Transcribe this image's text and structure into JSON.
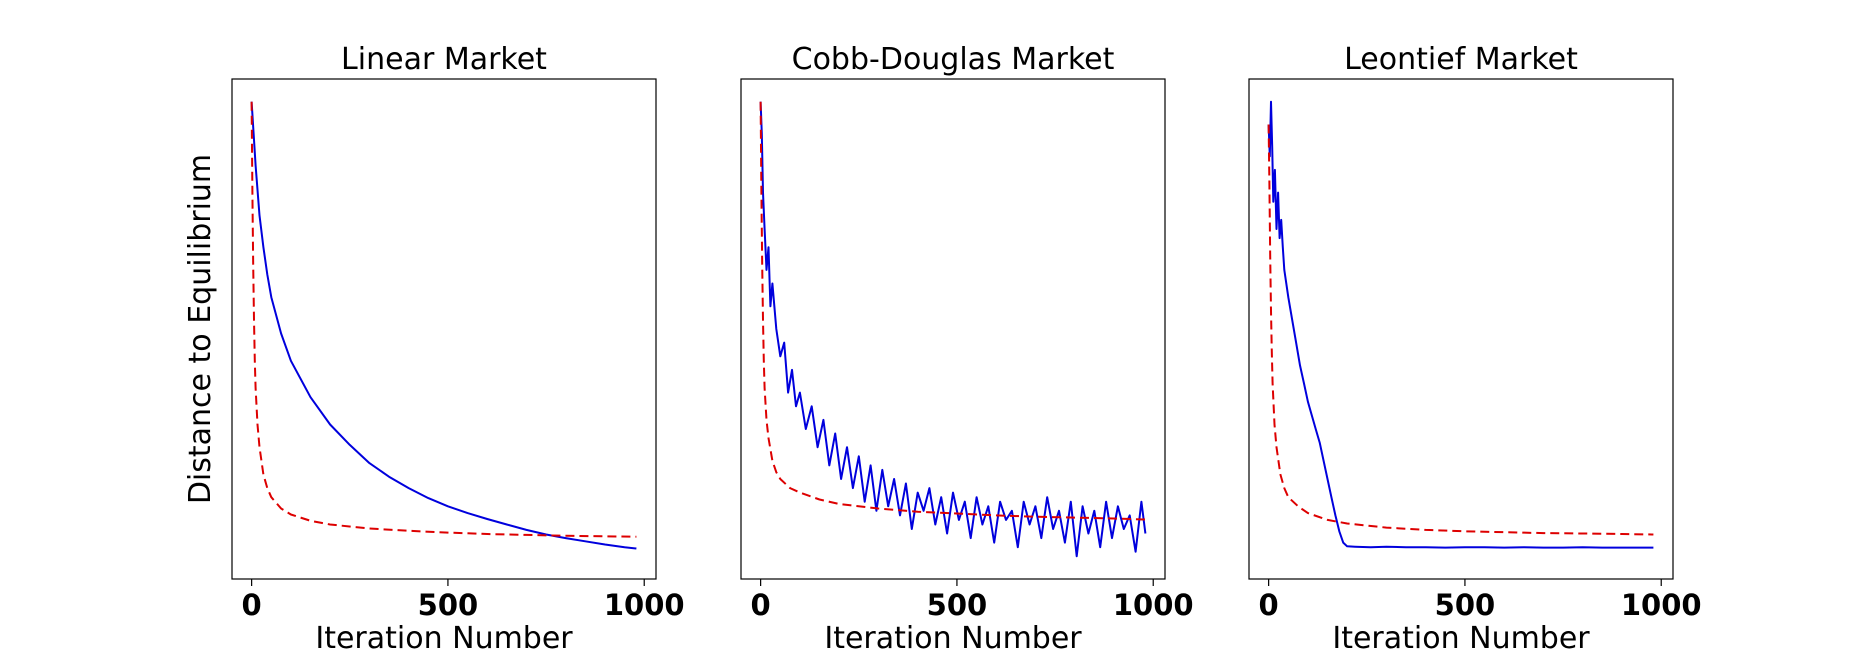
{
  "chart_data": [
    {
      "type": "line",
      "title": "Linear Market",
      "xlabel": "Iteration Number",
      "ylabel": "Distance to Equilibrium",
      "xlim": [
        -50,
        1030
      ],
      "ylim": [
        -0.05,
        1.05
      ],
      "x_ticks": [
        0,
        500,
        1000
      ],
      "y_ticks_labeled": false,
      "grid": false,
      "legend": "none",
      "series": [
        {
          "color": "#0000dd",
          "style": "solid",
          "x": [
            0,
            5,
            10,
            20,
            30,
            40,
            50,
            75,
            100,
            150,
            200,
            250,
            300,
            350,
            400,
            450,
            500,
            550,
            600,
            650,
            700,
            750,
            800,
            850,
            900,
            950,
            980
          ],
          "y": [
            1.0,
            0.93,
            0.86,
            0.75,
            0.68,
            0.62,
            0.57,
            0.49,
            0.43,
            0.35,
            0.29,
            0.245,
            0.205,
            0.175,
            0.15,
            0.128,
            0.11,
            0.095,
            0.082,
            0.07,
            0.058,
            0.048,
            0.04,
            0.033,
            0.026,
            0.02,
            0.017
          ]
        },
        {
          "color": "#dd0000",
          "style": "dashed",
          "x": [
            0,
            2,
            4,
            6,
            8,
            10,
            15,
            20,
            30,
            40,
            50,
            75,
            100,
            150,
            200,
            300,
            400,
            500,
            600,
            700,
            800,
            900,
            980
          ],
          "y": [
            1.0,
            0.8,
            0.64,
            0.52,
            0.43,
            0.37,
            0.29,
            0.24,
            0.18,
            0.15,
            0.13,
            0.105,
            0.092,
            0.078,
            0.07,
            0.061,
            0.056,
            0.052,
            0.049,
            0.047,
            0.045,
            0.044,
            0.043
          ]
        }
      ]
    },
    {
      "type": "line",
      "title": "Cobb-Douglas Market",
      "xlabel": "Iteration Number",
      "ylabel": "",
      "xlim": [
        -50,
        1030
      ],
      "ylim": [
        -0.05,
        1.05
      ],
      "x_ticks": [
        0,
        500,
        1000
      ],
      "y_ticks_labeled": false,
      "grid": false,
      "legend": "none",
      "series": [
        {
          "color": "#0000dd",
          "style": "solid",
          "x": [
            0,
            3,
            6,
            10,
            15,
            20,
            25,
            30,
            40,
            50,
            60,
            70,
            80,
            90,
            100,
            115,
            130,
            145,
            160,
            175,
            190,
            205,
            220,
            235,
            250,
            265,
            280,
            295,
            310,
            325,
            340,
            355,
            370,
            385,
            400,
            415,
            430,
            445,
            460,
            475,
            490,
            505,
            520,
            535,
            550,
            565,
            580,
            595,
            610,
            625,
            640,
            655,
            670,
            685,
            700,
            715,
            730,
            745,
            760,
            775,
            790,
            805,
            820,
            835,
            850,
            865,
            880,
            895,
            910,
            925,
            940,
            955,
            970,
            980
          ],
          "y": [
            1.0,
            0.93,
            0.8,
            0.72,
            0.63,
            0.68,
            0.55,
            0.6,
            0.5,
            0.44,
            0.47,
            0.36,
            0.41,
            0.33,
            0.36,
            0.28,
            0.33,
            0.24,
            0.3,
            0.2,
            0.27,
            0.17,
            0.24,
            0.15,
            0.22,
            0.12,
            0.2,
            0.1,
            0.19,
            0.11,
            0.17,
            0.09,
            0.16,
            0.06,
            0.14,
            0.1,
            0.15,
            0.07,
            0.13,
            0.05,
            0.14,
            0.08,
            0.12,
            0.04,
            0.13,
            0.07,
            0.11,
            0.03,
            0.12,
            0.08,
            0.1,
            0.02,
            0.12,
            0.07,
            0.11,
            0.04,
            0.13,
            0.06,
            0.1,
            0.03,
            0.12,
            0.0,
            0.11,
            0.05,
            0.1,
            0.02,
            0.12,
            0.04,
            0.11,
            0.06,
            0.09,
            0.01,
            0.12,
            0.05
          ]
        },
        {
          "color": "#dd0000",
          "style": "dashed",
          "x": [
            0,
            2,
            4,
            6,
            8,
            10,
            15,
            20,
            30,
            40,
            50,
            75,
            100,
            150,
            200,
            300,
            400,
            500,
            600,
            700,
            800,
            900,
            980
          ],
          "y": [
            1.0,
            0.8,
            0.64,
            0.52,
            0.43,
            0.37,
            0.3,
            0.26,
            0.21,
            0.185,
            0.17,
            0.15,
            0.14,
            0.125,
            0.115,
            0.105,
            0.098,
            0.094,
            0.09,
            0.087,
            0.085,
            0.083,
            0.081
          ]
        }
      ]
    },
    {
      "type": "line",
      "title": "Leontief Market",
      "xlabel": "Iteration Number",
      "ylabel": "",
      "xlim": [
        -50,
        1030
      ],
      "ylim": [
        -0.05,
        1.05
      ],
      "x_ticks": [
        0,
        500,
        1000
      ],
      "y_ticks_labeled": false,
      "grid": false,
      "legend": "none",
      "series": [
        {
          "color": "#0000dd",
          "style": "solid",
          "x": [
            0,
            3,
            6,
            9,
            12,
            16,
            20,
            24,
            28,
            32,
            36,
            40,
            50,
            60,
            70,
            80,
            90,
            100,
            110,
            120,
            130,
            140,
            150,
            160,
            170,
            180,
            190,
            200,
            220,
            260,
            300,
            350,
            400,
            450,
            500,
            550,
            600,
            650,
            700,
            750,
            800,
            850,
            900,
            950,
            980
          ],
          "y": [
            0.95,
            0.88,
            1.0,
            0.9,
            0.78,
            0.85,
            0.72,
            0.8,
            0.7,
            0.74,
            0.68,
            0.63,
            0.57,
            0.52,
            0.47,
            0.42,
            0.38,
            0.34,
            0.31,
            0.28,
            0.25,
            0.21,
            0.17,
            0.13,
            0.09,
            0.055,
            0.03,
            0.022,
            0.021,
            0.02,
            0.021,
            0.02,
            0.02,
            0.019,
            0.02,
            0.02,
            0.019,
            0.02,
            0.019,
            0.019,
            0.02,
            0.019,
            0.019,
            0.019,
            0.019
          ]
        },
        {
          "color": "#dd0000",
          "style": "dashed",
          "x": [
            0,
            2,
            4,
            6,
            8,
            10,
            15,
            20,
            30,
            40,
            50,
            75,
            100,
            150,
            200,
            300,
            400,
            500,
            600,
            700,
            800,
            900,
            980
          ],
          "y": [
            0.95,
            0.82,
            0.66,
            0.54,
            0.45,
            0.38,
            0.29,
            0.24,
            0.18,
            0.15,
            0.13,
            0.11,
            0.095,
            0.08,
            0.072,
            0.063,
            0.058,
            0.055,
            0.053,
            0.051,
            0.05,
            0.049,
            0.048
          ]
        }
      ]
    }
  ]
}
